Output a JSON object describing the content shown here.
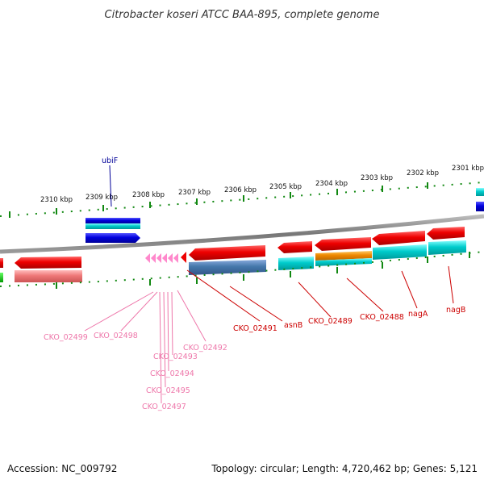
{
  "title": "Citrobacter koseri ATCC BAA-895, complete genome",
  "footer": {
    "accession": "Accession: NC_009792",
    "topology": "Topology: circular; Length: 4,720,462 bp; Genes: 5,121"
  },
  "scale_labels": [
    "2310 kbp",
    "2309 kbp",
    "2308 kbp",
    "2307 kbp",
    "2306 kbp",
    "2305 kbp",
    "2304 kbp",
    "2303 kbp",
    "2302 kbp",
    "2301 kbp"
  ],
  "gene_labels": {
    "ubiF": "ubiF",
    "CKO_02491": "CKO_02491",
    "asnB": "asnB",
    "CKO_02489": "CKO_02489",
    "CKO_02488": "CKO_02488",
    "nagA": "nagA",
    "nagB": "nagB",
    "CKO_02499": "CKO_02499",
    "CKO_02498": "CKO_02498",
    "CKO_02492": "CKO_02492",
    "CKO_02493": "CKO_02493",
    "CKO_02494": "CKO_02494",
    "CKO_02495": "CKO_02495",
    "CKO_02497": "CKO_02497"
  },
  "colors": {
    "cds_red": "#ee0000",
    "rna_pink": "#ff88cc",
    "cyan": "#00cccc",
    "blue": "#0000dd",
    "steel": "#4477aa",
    "orange": "#ee8800",
    "salmon": "#ee7777",
    "green_tick": "#118811",
    "backbone": "#888888",
    "label_red": "#cc0000",
    "label_pink": "#ee77aa",
    "label_blue": "#000099"
  }
}
